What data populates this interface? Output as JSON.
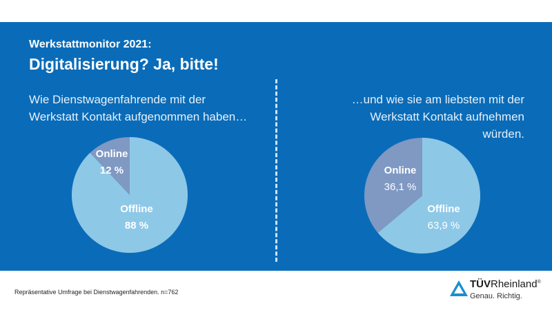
{
  "header": {
    "kicker": "Werkstattmonitor 2021:",
    "title": "Digitalisierung? Ja, bitte!"
  },
  "colors": {
    "background": "#0a6cb8",
    "offline": "#8ec8e7",
    "online": "#7f99c3"
  },
  "chart_data": [
    {
      "type": "pie",
      "title": "Wie Dienstwagenfahrende mit der Werkstatt Kontakt aufgenommen haben…",
      "slices": [
        {
          "label": "Online",
          "value": 12,
          "display": "12 %"
        },
        {
          "label": "Offline",
          "value": 88,
          "display": "88 %"
        }
      ]
    },
    {
      "type": "pie",
      "title": "…und wie sie am liebsten mit der Werkstatt Kontakt aufnehmen würden.",
      "slices": [
        {
          "label": "Online",
          "value": 36.1,
          "display": "36,1 %"
        },
        {
          "label": "Offline",
          "value": 63.9,
          "display": "63,9 %"
        }
      ]
    }
  ],
  "left_q": [
    "Wie Dienstwagenfahrende mit der",
    "Werkstatt Kontakt aufgenommen haben…"
  ],
  "right_q": [
    "…und wie sie am liebsten mit der",
    "Werkstatt Kontakt aufnehmen",
    "würden."
  ],
  "footer": {
    "note": "Repräsentative Umfrage bei Dienstwagenfahrenden. n=762",
    "brand_bold": "TÜV",
    "brand_rest": "Rheinland",
    "registered": "®",
    "tagline": "Genau. Richtig."
  }
}
